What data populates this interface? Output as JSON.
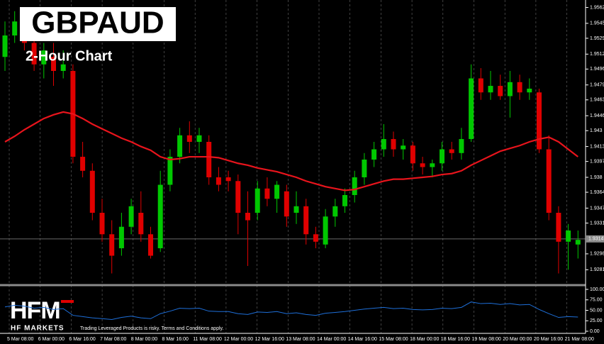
{
  "chart_data": {
    "type": "candlestick",
    "title": "GBPAUD",
    "subtitle": "2-Hour Chart",
    "brand": "HFM",
    "brand_name": "HF MARKETS",
    "disclaimer": "Trading Leveraged Products is risky. Terms and Conditions apply.",
    "x_labels": [
      "5 Mar 08:00",
      "6 Mar 00:00",
      "6 Mar 16:00",
      "7 Mar 08:00",
      "8 Mar 00:00",
      "8 Mar 16:00",
      "11 Mar 08:00",
      "12 Mar 00:00",
      "12 Mar 16:00",
      "13 Mar 08:00",
      "14 Mar 00:00",
      "14 Mar 16:00",
      "15 Mar 08:00",
      "18 Mar 00:00",
      "18 Mar 16:00",
      "19 Mar 08:00",
      "20 Mar 00:00",
      "20 Mar 16:00",
      "21 Mar 08:00"
    ],
    "ylim": [
      1.9266,
      1.957
    ],
    "yticks": [
      1.9562,
      1.9545,
      1.9529,
      1.9512,
      1.9496,
      1.9479,
      1.9463,
      1.9446,
      1.943,
      1.9413,
      1.9397,
      1.938,
      1.9364,
      1.9347,
      1.9331,
      1.9298,
      1.9281
    ],
    "last_price": 1.9314,
    "up_color": "#00c800",
    "down_color": "#e00000",
    "open": [
      1.9509,
      1.9532,
      1.9539,
      1.9524,
      1.9501,
      1.9509,
      1.9494,
      1.9494,
      1.9402,
      1.9387,
      1.9342,
      1.9319,
      1.9304,
      1.9327,
      1.9342,
      1.9319,
      1.9304,
      1.9372,
      1.9402,
      1.9425,
      1.9418,
      1.9418,
      1.938,
      1.938,
      1.9376,
      1.9342,
      1.9342,
      1.9368,
      1.9357,
      1.9365,
      1.9342,
      1.9349,
      1.9319,
      1.9308,
      1.9338,
      1.9349,
      1.9361,
      1.938,
      1.9399,
      1.941,
      1.9421,
      1.941,
      1.9414,
      1.9395,
      1.9391,
      1.9395,
      1.941,
      1.9406,
      1.9421,
      1.9486,
      1.9471,
      1.9478,
      1.9467,
      1.9482,
      1.9471,
      1.9471,
      1.941,
      1.9342,
      1.9311,
      1.9308
    ],
    "high": [
      1.9547,
      1.9558,
      1.9551,
      1.9532,
      1.9524,
      1.9524,
      1.9516,
      1.9501,
      1.9418,
      1.9395,
      1.9357,
      1.9334,
      1.9342,
      1.9357,
      1.9365,
      1.9327,
      1.9387,
      1.941,
      1.9433,
      1.944,
      1.9433,
      1.9425,
      1.9391,
      1.9387,
      1.9383,
      1.9365,
      1.9376,
      1.938,
      1.9376,
      1.9372,
      1.9365,
      1.9357,
      1.9327,
      1.9346,
      1.9357,
      1.9368,
      1.9387,
      1.9406,
      1.9418,
      1.9437,
      1.9429,
      1.9421,
      1.9418,
      1.9402,
      1.9399,
      1.9418,
      1.9418,
      1.9433,
      1.9501,
      1.9497,
      1.9494,
      1.949,
      1.9494,
      1.949,
      1.9486,
      1.9475,
      1.9425,
      1.9349,
      1.933,
      1.9323
    ],
    "low": [
      1.9494,
      1.9524,
      1.9516,
      1.9494,
      1.9486,
      1.9478,
      1.9486,
      1.9395,
      1.938,
      1.9334,
      1.9311,
      1.9277,
      1.9296,
      1.9319,
      1.9311,
      1.9293,
      1.93,
      1.9365,
      1.9395,
      1.9406,
      1.9406,
      1.9372,
      1.9365,
      1.9365,
      1.9319,
      1.9285,
      1.9334,
      1.9349,
      1.9342,
      1.9327,
      1.933,
      1.9308,
      1.9304,
      1.9304,
      1.9327,
      1.9342,
      1.9353,
      1.9372,
      1.9391,
      1.9402,
      1.9402,
      1.9399,
      1.9387,
      1.9383,
      1.938,
      1.9387,
      1.9399,
      1.9399,
      1.9418,
      1.9463,
      1.9463,
      1.9463,
      1.9444,
      1.9463,
      1.9463,
      1.9406,
      1.9334,
      1.9277,
      1.9281,
      1.9293
    ],
    "close": [
      1.9532,
      1.9547,
      1.9524,
      1.9501,
      1.9516,
      1.9494,
      1.9501,
      1.9402,
      1.9387,
      1.9342,
      1.9319,
      1.9296,
      1.9327,
      1.9349,
      1.9319,
      1.9296,
      1.9372,
      1.9402,
      1.9425,
      1.9418,
      1.9425,
      1.938,
      1.9372,
      1.9376,
      1.9342,
      1.9334,
      1.9368,
      1.9357,
      1.9372,
      1.9338,
      1.9349,
      1.9319,
      1.9311,
      1.9338,
      1.9349,
      1.9361,
      1.938,
      1.9399,
      1.941,
      1.9421,
      1.941,
      1.9414,
      1.9395,
      1.9391,
      1.9395,
      1.941,
      1.9406,
      1.9421,
      1.9486,
      1.9471,
      1.9478,
      1.9467,
      1.9482,
      1.9471,
      1.9475,
      1.941,
      1.9342,
      1.9311,
      1.9323,
      1.9313
    ],
    "moving_average": {
      "color": "#e8141c",
      "values": [
        1.9418,
        1.9424,
        1.9431,
        1.9437,
        1.9443,
        1.9447,
        1.945,
        1.9448,
        1.9443,
        1.9437,
        1.9432,
        1.9427,
        1.9422,
        1.9418,
        1.9413,
        1.9409,
        1.9402,
        1.9399,
        1.94,
        1.9402,
        1.9402,
        1.9402,
        1.9401,
        1.9398,
        1.9395,
        1.9393,
        1.939,
        1.9388,
        1.9386,
        1.9383,
        1.938,
        1.9376,
        1.9373,
        1.937,
        1.9368,
        1.9366,
        1.9367,
        1.937,
        1.9373,
        1.9376,
        1.9378,
        1.9378,
        1.9379,
        1.938,
        1.9381,
        1.9383,
        1.9384,
        1.9387,
        1.9393,
        1.9398,
        1.9403,
        1.9408,
        1.9411,
        1.9414,
        1.9418,
        1.9421,
        1.9423,
        1.9418,
        1.941,
        1.9402
      ]
    },
    "indicator": {
      "color": "#1e6fd9",
      "ylim": [
        0,
        100
      ],
      "yticks": [
        {
          "value": 100,
          "label": "100.00"
        },
        {
          "value": 75,
          "label": "75.00"
        },
        {
          "value": 50,
          "label": "50.00"
        },
        {
          "value": 25,
          "label": "25.00"
        },
        {
          "value": 0,
          "label": "0.00"
        }
      ],
      "values": [
        58,
        62,
        60,
        55,
        57,
        52,
        54,
        38,
        35,
        32,
        30,
        28,
        33,
        36,
        32,
        30,
        42,
        48,
        55,
        54,
        55,
        48,
        47,
        47,
        42,
        40,
        46,
        45,
        47,
        42,
        44,
        40,
        38,
        43,
        45,
        47,
        50,
        53,
        55,
        57,
        54,
        55,
        52,
        51,
        52,
        55,
        54,
        57,
        70,
        66,
        67,
        64,
        66,
        63,
        64,
        52,
        42,
        33,
        35,
        34
      ]
    }
  }
}
